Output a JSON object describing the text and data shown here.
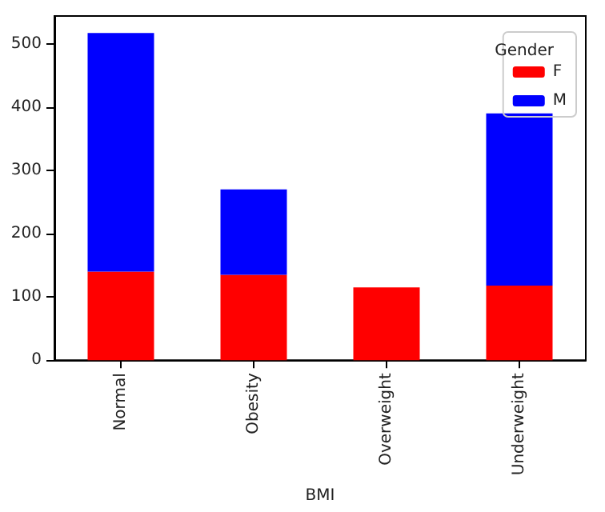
{
  "chart_data": {
    "type": "bar",
    "xlabel": "BMI",
    "legend_title": "Gender",
    "categories": [
      "Normal",
      "Obesity",
      "Overweight",
      "Underweight"
    ],
    "series": [
      {
        "name": "F",
        "color": "#ff0000",
        "values": [
          140,
          135,
          115,
          118
        ]
      },
      {
        "name": "M",
        "color": "#0000ff",
        "values": [
          377,
          135,
          0,
          272
        ]
      }
    ],
    "stacked": true,
    "ylim": [
      0,
      544
    ],
    "yticks": [
      0,
      100,
      200,
      300,
      400,
      500
    ],
    "grid": false,
    "legend": "top right"
  }
}
